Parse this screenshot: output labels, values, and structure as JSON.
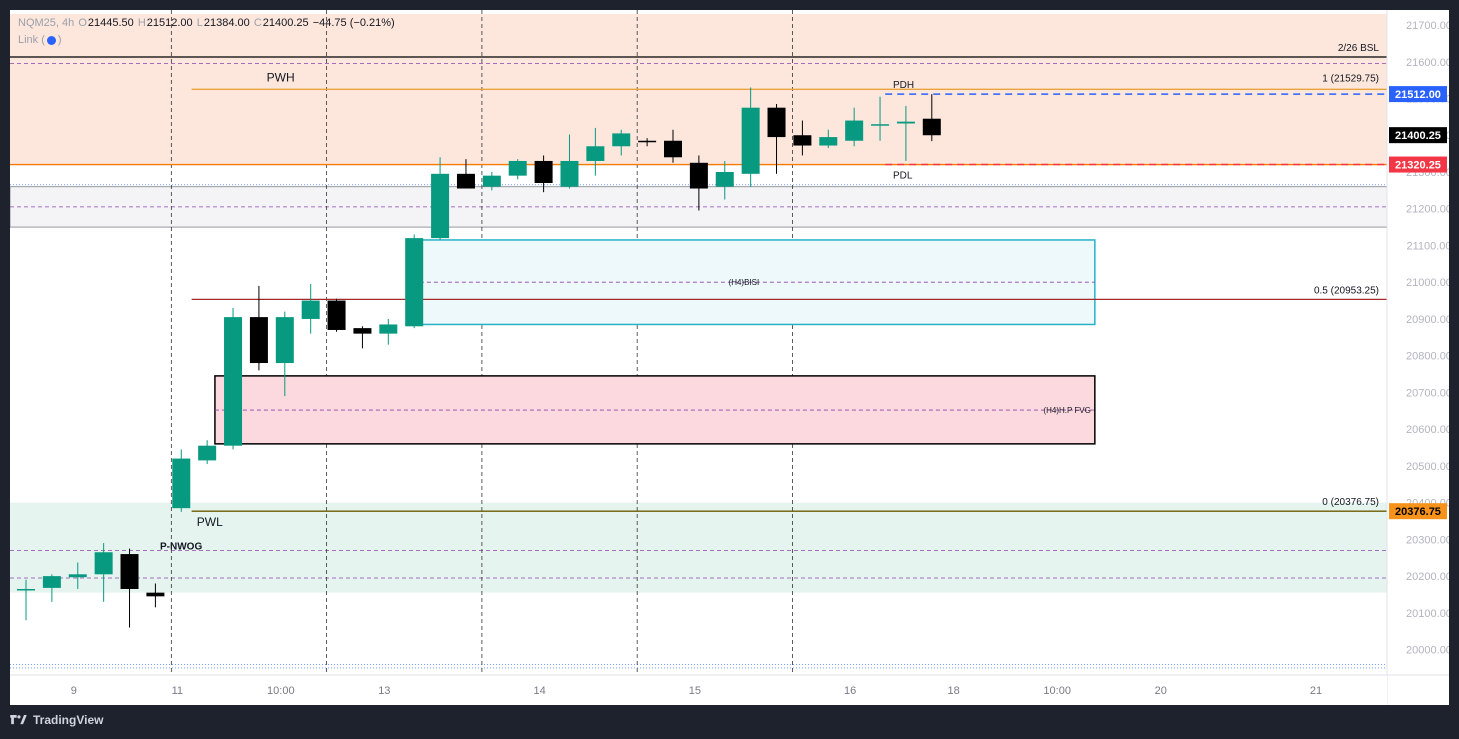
{
  "header": {
    "symbol": "NQM25, 4h",
    "open_label": "O",
    "open": "21445.50",
    "high_label": "H",
    "high": "21512.00",
    "low_label": "L",
    "low": "21384.00",
    "close_label": "C",
    "close": "21400.25",
    "change": "−44.75 (−0.21%)",
    "link_label": "Link"
  },
  "footer": {
    "brand": "TradingView",
    "logo_icon": "tradingview-logo-icon"
  },
  "colors": {
    "bull": "#089981",
    "bear": "#000000",
    "premium_zone": "#fde7dc",
    "discount_zone": "#e5f4ef",
    "fvg_zone": "#fcd9de",
    "bisi_zone": "#eef9fb",
    "bisi_border": "#26b3c9",
    "pwh_line": "#e8a33d",
    "fib_mid": "#a52a2a",
    "pdh_tag": "#2962ff",
    "pdl_tag": "#f23645",
    "pwl_tag": "#f7931a"
  },
  "chart_data": {
    "type": "candlestick",
    "symbol": "NQM25",
    "timeframe": "4h",
    "ylim": [
      19920,
      21730
    ],
    "y_ticks": [
      "21700.00",
      "21600.00",
      "21500.00",
      "21400.00",
      "21300.00",
      "21200.00",
      "21100.00",
      "21000.00",
      "20900.00",
      "20800.00",
      "20700.00",
      "20600.00",
      "20500.00",
      "20400.00",
      "20300.00",
      "20200.00",
      "20100.00",
      "20000.00"
    ],
    "x_ticks": [
      {
        "label": "9",
        "slot": 2
      },
      {
        "label": "11",
        "slot": 6
      },
      {
        "label": "10:00",
        "slot": 10
      },
      {
        "label": "13",
        "slot": 14
      },
      {
        "label": "14",
        "slot": 20
      },
      {
        "label": "15",
        "slot": 26
      },
      {
        "label": "16",
        "slot": 32
      },
      {
        "label": "18",
        "slot": 36
      },
      {
        "label": "10:00",
        "slot": 40
      },
      {
        "label": "20",
        "slot": 44
      },
      {
        "label": "21",
        "slot": 50
      }
    ],
    "candles": [
      {
        "o": 20162,
        "h": 20190,
        "l": 20080,
        "c": 20165
      },
      {
        "o": 20168,
        "h": 20205,
        "l": 20130,
        "c": 20200
      },
      {
        "o": 20197,
        "h": 20237,
        "l": 20165,
        "c": 20205
      },
      {
        "o": 20205,
        "h": 20290,
        "l": 20130,
        "c": 20265
      },
      {
        "o": 20260,
        "h": 20275,
        "l": 20060,
        "c": 20165
      },
      {
        "o": 20155,
        "h": 20180,
        "l": 20115,
        "c": 20145
      },
      {
        "o": 20385,
        "h": 20545,
        "l": 20375,
        "c": 20520
      },
      {
        "o": 20515,
        "h": 20570,
        "l": 20505,
        "c": 20555
      },
      {
        "o": 20555,
        "h": 20930,
        "l": 20545,
        "c": 20905
      },
      {
        "o": 20905,
        "h": 20990,
        "l": 20760,
        "c": 20780
      },
      {
        "o": 20780,
        "h": 20920,
        "l": 20690,
        "c": 20905
      },
      {
        "o": 20900,
        "h": 20995,
        "l": 20860,
        "c": 20950
      },
      {
        "o": 20950,
        "h": 20955,
        "l": 20865,
        "c": 20870
      },
      {
        "o": 20875,
        "h": 20880,
        "l": 20820,
        "c": 20860
      },
      {
        "o": 20860,
        "h": 20900,
        "l": 20830,
        "c": 20885
      },
      {
        "o": 20880,
        "h": 21130,
        "l": 20875,
        "c": 21120
      },
      {
        "o": 21120,
        "h": 21340,
        "l": 21115,
        "c": 21295
      },
      {
        "o": 21295,
        "h": 21335,
        "l": 21255,
        "c": 21255
      },
      {
        "o": 21260,
        "h": 21300,
        "l": 21250,
        "c": 21290
      },
      {
        "o": 21290,
        "h": 21335,
        "l": 21280,
        "c": 21330
      },
      {
        "o": 21330,
        "h": 21345,
        "l": 21245,
        "c": 21270
      },
      {
        "o": 21260,
        "h": 21402,
        "l": 21255,
        "c": 21330
      },
      {
        "o": 21330,
        "h": 21420,
        "l": 21290,
        "c": 21370
      },
      {
        "o": 21370,
        "h": 21415,
        "l": 21345,
        "c": 21405
      },
      {
        "o": 21385,
        "h": 21392,
        "l": 21370,
        "c": 21382
      },
      {
        "o": 21385,
        "h": 21415,
        "l": 21325,
        "c": 21340
      },
      {
        "o": 21325,
        "h": 21345,
        "l": 21195,
        "c": 21255
      },
      {
        "o": 21260,
        "h": 21330,
        "l": 21225,
        "c": 21300
      },
      {
        "o": 21295,
        "h": 21530,
        "l": 21260,
        "c": 21475
      },
      {
        "o": 21475,
        "h": 21485,
        "l": 21295,
        "c": 21395
      },
      {
        "o": 21400,
        "h": 21440,
        "l": 21345,
        "c": 21372
      },
      {
        "o": 21372,
        "h": 21415,
        "l": 21365,
        "c": 21395
      },
      {
        "o": 21385,
        "h": 21475,
        "l": 21370,
        "c": 21440
      },
      {
        "o": 21430,
        "h": 21505,
        "l": 21385,
        "c": 21430
      },
      {
        "o": 21432,
        "h": 21480,
        "l": 21330,
        "c": 21437
      },
      {
        "o": 21445,
        "h": 21512,
        "l": 21384,
        "c": 21400
      }
    ],
    "zones": [
      {
        "name": "premium-zone",
        "y1": 21730,
        "y2": 21600,
        "fill": "#fde7dc"
      },
      {
        "name": "premium-band",
        "y1": 21600,
        "y2": 21320,
        "fill": "#fde7dc"
      },
      {
        "name": "grey-zone",
        "y1": 21260,
        "y2": 21150,
        "fill": "#f4f4f6",
        "border": "#9598a1"
      },
      {
        "name": "ndog-zone",
        "y1": 20400,
        "y2": 20155,
        "fill": "#e5f4ef"
      }
    ],
    "boxes": [
      {
        "name": "bisi-box",
        "label": "(H4)BISI",
        "x_from_slot": 14.95,
        "x_to_slot": 41.3,
        "y1": 21115,
        "y2": 20885,
        "mid": 21000,
        "fill": "#eef9fb",
        "border": "#26b3c9"
      },
      {
        "name": "fvg-box",
        "label": "(H4)H.P FVG",
        "x_from_slot": 7.3,
        "x_to_slot": 41.3,
        "y1": 20745,
        "y2": 20560,
        "mid": 20652,
        "fill": "#fcd9de",
        "border": "#000000"
      }
    ],
    "levels": [
      {
        "name": "bsl-line",
        "price": 21613,
        "label": "2/26 BSL",
        "color": "#000000",
        "style": "solid"
      },
      {
        "name": "pwh-line",
        "price": 21525,
        "label": "PWH",
        "color": "#e8a33d",
        "style": "solid"
      },
      {
        "name": "fib-1-line",
        "price": 21529.75,
        "label": "1 (21529.75)",
        "color": "#000000",
        "style": "none"
      },
      {
        "name": "fib-05-line",
        "price": 20953.25,
        "label": "0.5 (20953.25)",
        "color": "#a52a2a",
        "style": "solid"
      },
      {
        "name": "fib-0-line",
        "price": 20376.75,
        "label": "0 (20376.75)",
        "color": "#000000",
        "style": "none"
      },
      {
        "name": "pwl-line",
        "price": 20376.75,
        "label": "PWL",
        "color": "#6b5b00",
        "style": "solid"
      },
      {
        "name": "orange-line",
        "price": 21320.25,
        "label": "",
        "color": "#f57c00",
        "style": "solid"
      },
      {
        "name": "pdh-line",
        "price": 21512,
        "label": "PDH",
        "color": "#2962ff",
        "style": "dashed"
      },
      {
        "name": "pdl-line",
        "price": 21320.25,
        "label": "PDL",
        "color": "#f23645",
        "style": "dashed"
      }
    ],
    "price_tags": [
      {
        "price": 21512.0,
        "label": "21512.00",
        "bg": "#2962ff",
        "fg": "#ffffff"
      },
      {
        "price": 21400.25,
        "label": "21400.25",
        "bg": "#000000",
        "fg": "#ffffff"
      },
      {
        "price": 21320.25,
        "label": "21320.25",
        "bg": "#f23645",
        "fg": "#ffffff"
      },
      {
        "price": 20376.75,
        "label": "20376.75",
        "bg": "#f7931a",
        "fg": "#000000"
      }
    ],
    "annotations": [
      {
        "name": "ndog-label",
        "label": "P-NWOG"
      }
    ]
  }
}
